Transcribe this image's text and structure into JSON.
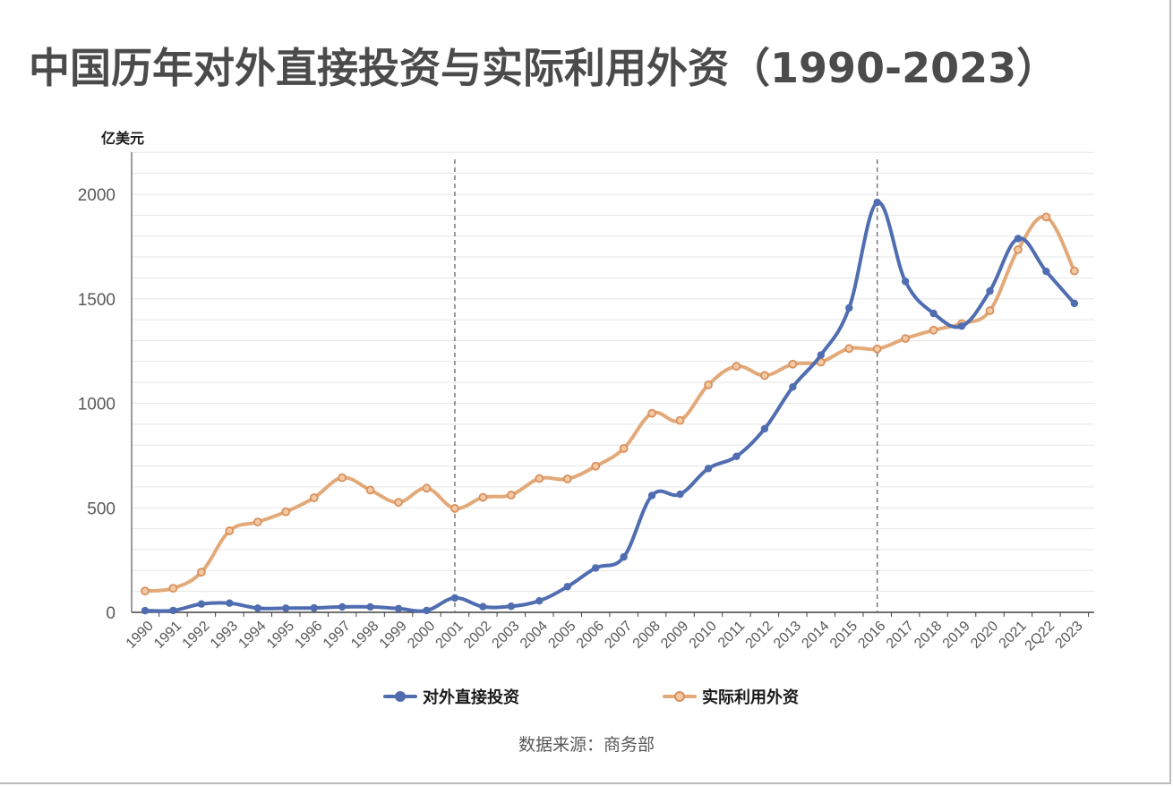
{
  "title": "中国历年对外直接投资与实际利用外资（1990-2023）",
  "unit": "亿美元",
  "source": "数据来源：商务部",
  "colors": {
    "series1": "#4f6db0",
    "series2": "#e3a978",
    "series2_marker": "#d9905e",
    "grid": "#e6e6e6",
    "axis": "#595959",
    "ref_line": "#666666"
  },
  "chart_data": {
    "type": "line",
    "x": [
      "1990",
      "1991",
      "1992",
      "1993",
      "1994",
      "1995",
      "1996",
      "1997",
      "1998",
      "1999",
      "2000",
      "2001",
      "2002",
      "2003",
      "2004",
      "2005",
      "2006",
      "2007",
      "2008",
      "2009",
      "2010",
      "2011",
      "2012",
      "2013",
      "2014",
      "2015",
      "2016",
      "2017",
      "2018",
      "2019",
      "2020",
      "2021",
      "2Q22",
      "2023"
    ],
    "ylabel": "亿美元",
    "ylim": [
      0,
      2200
    ],
    "yticks": [
      0,
      500,
      1000,
      1500,
      2000
    ],
    "grid": true,
    "minor_grid_step": 100,
    "reference_lines_x": [
      "2001",
      "2016"
    ],
    "legend_position": "bottom",
    "series": [
      {
        "name": "对外直接投资",
        "color": "#4f6db0",
        "values": [
          8,
          9,
          40,
          44,
          20,
          20,
          21,
          26,
          26,
          18,
          9,
          69,
          27,
          29,
          55,
          123,
          212,
          265,
          559,
          565,
          688,
          746,
          878,
          1078,
          1231,
          1456,
          1961,
          1583,
          1430,
          1369,
          1537,
          1788,
          1631,
          1478
        ]
      },
      {
        "name": "实际利用外资",
        "color": "#e3a978",
        "values": [
          102,
          115,
          192,
          390,
          432,
          481,
          548,
          644,
          585,
          526,
          594,
          497,
          550,
          561,
          640,
          638,
          699,
          784,
          952,
          918,
          1088,
          1177,
          1133,
          1187,
          1197,
          1262,
          1260,
          1310,
          1350,
          1381,
          1443,
          1735,
          1891,
          1633
        ]
      }
    ]
  }
}
